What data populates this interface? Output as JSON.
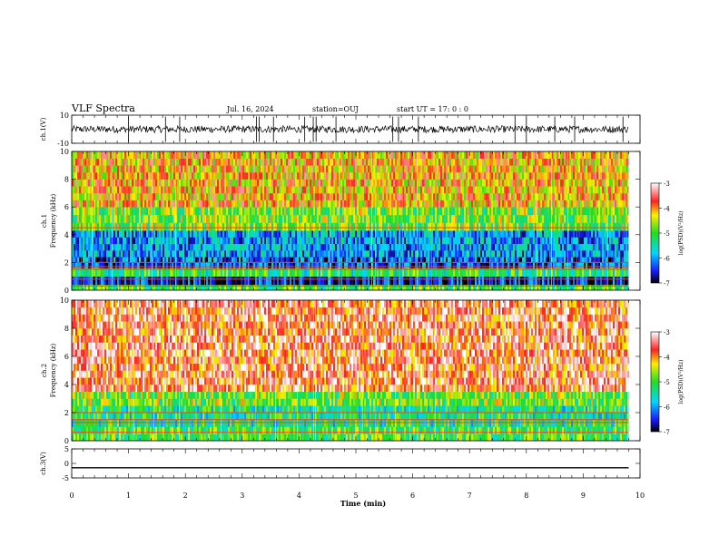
{
  "header": {
    "title": "VLF Spectra",
    "date": "Jul. 16, 2024",
    "station": "station=OUJ",
    "start_ut": "start UT =  17: 0 : 0"
  },
  "colors": {
    "frame": "#000000",
    "high_power": "#ee2222",
    "mid_power": "#22dd22",
    "low_power": "#0a1a8c"
  },
  "chart_data": [
    {
      "type": "line",
      "panel": "ch1-waveform",
      "ylabel": "ch.1(V)",
      "ylim": [
        -10,
        10
      ],
      "yticks": [
        "10",
        "-10"
      ],
      "xlim": [
        0,
        10
      ],
      "series": [
        {
          "mean": 0,
          "amplitude": 2.5,
          "spike_times_min": [
            1.0,
            1.65,
            1.9,
            3.25,
            3.3,
            3.55,
            4.1,
            4.25,
            4.3,
            4.65,
            5.65,
            5.75,
            6.1,
            7.8,
            8.0,
            8.5,
            8.85,
            9.7
          ]
        }
      ]
    },
    {
      "type": "heatmap",
      "panel": "ch1-spectrogram",
      "ylabel": "ch.1\nFrequency (kHz)",
      "ylim": [
        0,
        10
      ],
      "yticks": [
        "0",
        "2",
        "4",
        "6",
        "8",
        "10"
      ],
      "xlim": [
        0,
        9.8
      ],
      "colorbar": {
        "label": "log(PSD)(V²/Hz)",
        "range": [
          -7,
          -3
        ],
        "ticks": [
          "-3",
          "-4",
          "-5",
          "-6",
          "-7"
        ]
      },
      "bands": [
        {
          "from_khz": 0.0,
          "to_khz": 0.4,
          "level": -5.0
        },
        {
          "from_khz": 0.4,
          "to_khz": 1.0,
          "level": -6.6
        },
        {
          "from_khz": 1.0,
          "to_khz": 1.6,
          "level": -5.2
        },
        {
          "from_khz": 1.6,
          "to_khz": 2.4,
          "level": -6.3
        },
        {
          "from_khz": 2.4,
          "to_khz": 4.3,
          "level": -6.0
        },
        {
          "from_khz": 4.3,
          "to_khz": 6.0,
          "level": -4.8
        },
        {
          "from_khz": 6.0,
          "to_khz": 10.0,
          "level": -4.1
        }
      ],
      "tones_khz": [
        0.3,
        0.8,
        1.5,
        1.7,
        2.0,
        4.5
      ]
    },
    {
      "type": "heatmap",
      "panel": "ch2-spectrogram",
      "ylabel": "ch.2\nFrequency (kHz)",
      "ylim": [
        0,
        10
      ],
      "yticks": [
        "0",
        "2",
        "4",
        "6",
        "8",
        "10"
      ],
      "xlim": [
        0,
        9.8
      ],
      "colorbar": {
        "label": "log(PSD)(V²/Hz)",
        "range": [
          -7,
          -3
        ],
        "ticks": [
          "-3",
          "-4",
          "-5",
          "-6",
          "-7"
        ]
      },
      "bands": [
        {
          "from_khz": 0.0,
          "to_khz": 1.0,
          "level": -5.0
        },
        {
          "from_khz": 1.0,
          "to_khz": 2.5,
          "level": -5.3
        },
        {
          "from_khz": 2.5,
          "to_khz": 3.5,
          "level": -4.8
        },
        {
          "from_khz": 3.5,
          "to_khz": 10.0,
          "level": -3.6
        }
      ],
      "tones_khz": [
        0.6,
        1.3,
        1.5,
        2.0
      ]
    },
    {
      "type": "line",
      "panel": "ch3-waveform",
      "ylabel": "ch.3(V)",
      "ylim": [
        -5,
        5
      ],
      "yticks": [
        "5",
        "0",
        "-5"
      ],
      "xlim": [
        0,
        10
      ],
      "xlabel": "Time (min)",
      "xticks": [
        "0",
        "1",
        "2",
        "3",
        "4",
        "5",
        "6",
        "7",
        "8",
        "9",
        "10"
      ],
      "series": [
        {
          "x": [
            0,
            9.8
          ],
          "y": [
            -1.5,
            -1.5
          ]
        }
      ]
    }
  ]
}
